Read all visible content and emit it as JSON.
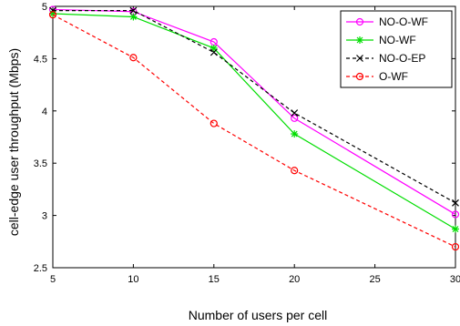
{
  "chart_data": {
    "type": "line",
    "title": "",
    "xlabel": "Number of users per cell",
    "ylabel": "cell-edge user throughput (Mbps)",
    "xlim": [
      5,
      30
    ],
    "ylim": [
      2.5,
      5
    ],
    "x_ticks": [
      5,
      10,
      15,
      20,
      25,
      30
    ],
    "y_ticks": [
      2.5,
      3,
      3.5,
      4,
      4.5,
      5
    ],
    "x_tick_labels": [
      "5",
      "10",
      "15",
      "20",
      "25",
      "30"
    ],
    "y_tick_labels": [
      "2.5",
      "3",
      "3.5",
      "4",
      "4.5",
      "5"
    ],
    "grid": false,
    "legend_position": "top-right",
    "x": [
      5,
      10,
      15,
      20,
      30
    ],
    "series": [
      {
        "name": "NO-O-WF",
        "values": [
          4.97,
          4.95,
          4.66,
          3.93,
          3.01
        ],
        "color": "#ff00ff",
        "dash": "solid",
        "marker": "circle"
      },
      {
        "name": "NO-WF",
        "values": [
          4.93,
          4.9,
          4.6,
          3.78,
          2.87
        ],
        "color": "#00dd00",
        "dash": "solid",
        "marker": "star"
      },
      {
        "name": "NO-O-EP",
        "values": [
          4.96,
          4.96,
          4.56,
          3.98,
          3.12
        ],
        "color": "#000000",
        "dash": "dashed",
        "marker": "x"
      },
      {
        "name": "O-WF",
        "values": [
          4.92,
          4.51,
          3.88,
          3.43,
          2.7
        ],
        "color": "#ff0000",
        "dash": "dashed",
        "marker": "circle"
      }
    ]
  }
}
